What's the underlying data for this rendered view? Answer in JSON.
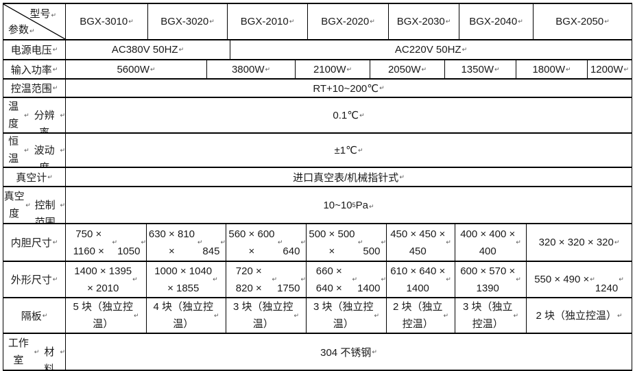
{
  "colors": {
    "background": "#ffffff",
    "grid_line": "#000000",
    "text": "#1a1a1a",
    "return_mark": "#555555"
  },
  "corner": {
    "model_label": "型号↵",
    "param_label": "参数↵"
  },
  "models": [
    "BGX-3010↵",
    "BGX-3020↵",
    "BGX-2010↵",
    "BGX-2020↵",
    "BGX-2030↵",
    "BGX-2040↵",
    "BGX-2050↵"
  ],
  "rows": {
    "voltage": {
      "label": "电源电压↵",
      "v380": "AC380V 50HZ↵",
      "v220": "AC220V 50HZ↵"
    },
    "power": {
      "label": "输入功率↵",
      "cells": [
        "5600W↵",
        "3800W↵",
        "2100W↵",
        "2050W↵",
        "1350W↵",
        "1800W↵",
        "1200W↵"
      ]
    },
    "temp_range": {
      "label": "控温范围↵",
      "value": "RT+10~200℃↵"
    },
    "resolution": {
      "label": "温度↵\n分辨率↵",
      "value": "0.1℃↵"
    },
    "fluctuation": {
      "label": "恒温↵\n波动度↵",
      "value": "±1℃↵"
    },
    "vacuum_gauge": {
      "label": "真空计↵",
      "value": "进口真空表/机械指针式↵"
    },
    "vacuum_range": {
      "label": "真空度↵\n控制范围↵",
      "value_base": "10~10",
      "value_sup": "5",
      "value_unit": "Pa↵"
    },
    "inner_size": {
      "label": "内胆尺寸↵",
      "cells": [
        "750 × 1160 × ↵\n1050↵",
        "630 × 810 × ↵\n845↵",
        "560 × 600 × ↵\n640↵",
        "500 × 500 × ↵\n500↵",
        "450 × 450 ×\n450↵",
        "400 × 400 ×\n400↵",
        "320 × 320 × 320↵"
      ]
    },
    "outer_size": {
      "label": "外形尺寸↵",
      "cells": [
        "1400 × 1395\n× 2010↵",
        "1000 × 1040\n× 1855↵",
        "720 × 820 × ↵\n1750↵",
        "660 × 640 × ↵\n1400↵",
        "610 × 640 ×\n1400↵",
        "600 × 570 ×\n1390↵",
        "550 × 490 × ↵\n1240↵"
      ]
    },
    "shelves": {
      "label": "隔板↵",
      "cells": [
        "5 块（独立控\n温）↵",
        "4 块（独立控\n温）↵",
        "3 块（独立控\n温）↵",
        "3 块（独立控\n温）↵",
        "2 块（独立\n控温）↵",
        "3 块（独立\n控温）↵",
        "2 块（独立控温）↵"
      ]
    },
    "material": {
      "label": "工作室↵\n材料↵",
      "value": "304 不锈钢↵"
    }
  }
}
